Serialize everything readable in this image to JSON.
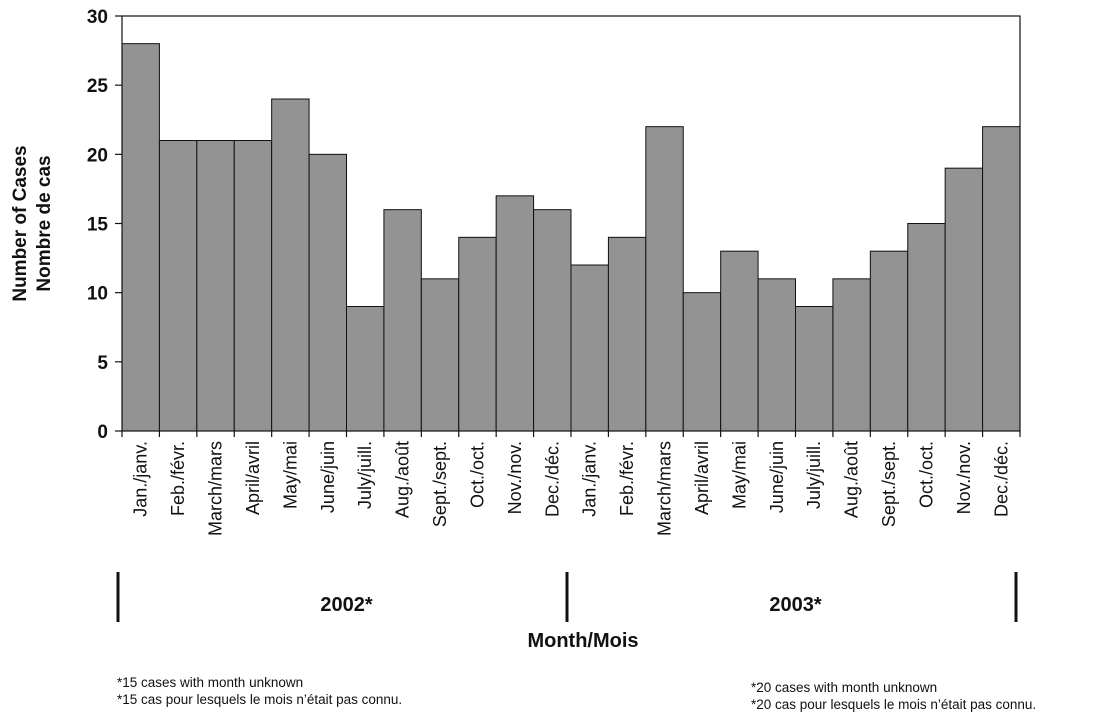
{
  "chart_data": {
    "type": "bar",
    "ylabel": [
      "Number of Cases",
      "Nombre de cas"
    ],
    "xlabel": "Month/Mois",
    "ylim": [
      0,
      30
    ],
    "yticks": [
      0,
      5,
      10,
      15,
      20,
      25,
      30
    ],
    "categories": [
      "Jan./janv.",
      "Feb./févr.",
      "March/mars",
      "April/avril",
      "May/mai",
      "June/juin",
      "July/juill.",
      "Aug./août",
      "Sept./sept.",
      "Oct./oct.",
      "Nov./nov.",
      "Dec./déc.",
      "Jan./janv.",
      "Feb./févr.",
      "March/mars",
      "April/avril",
      "May/mai",
      "June/juin",
      "July/juill.",
      "Aug./août",
      "Sept./sept.",
      "Oct./oct.",
      "Nov./nov.",
      "Dec./déc."
    ],
    "values": [
      28,
      21,
      21,
      21,
      24,
      20,
      9,
      16,
      11,
      14,
      17,
      16,
      12,
      14,
      22,
      10,
      13,
      11,
      9,
      11,
      13,
      15,
      19,
      22
    ],
    "groups": [
      {
        "label": "2002*",
        "count": 12
      },
      {
        "label": "2003*",
        "count": 12
      }
    ],
    "bar_color": "#939393",
    "grid": false
  },
  "notes": {
    "left": [
      "*15 cases with month unknown",
      "*15 cas pour lesquels le mois n’était pas connu."
    ],
    "right": [
      "*20 cases with month unknown",
      "*20 cas pour lesquels le mois n’était pas connu."
    ]
  }
}
